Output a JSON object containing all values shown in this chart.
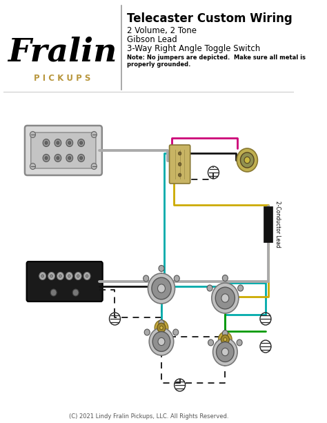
{
  "title": "Telecaster Custom Wiring",
  "subtitle_lines": [
    "2 Volume, 2 Tone",
    "Gibson Lead",
    "3-Way Right Angle Toggle Switch"
  ],
  "note": "Note: No jumpers are depicted.  Make sure all metal is\nproperly grounded.",
  "copyright": "(C) 2021 Lindy Fralin Pickups, LLC. All Rights Reserved.",
  "fralin_text": "Fralin",
  "pickups_text": "P I C K U P S",
  "bg_color": "#ffffff",
  "wire_colors": {
    "pink": "#cc0077",
    "teal": "#00aaaa",
    "yellow": "#ccaa00",
    "black": "#111111",
    "gray": "#aaaaaa",
    "green": "#009900",
    "white": "#ffffff"
  },
  "conductor_label": "2-Conductor Lead"
}
